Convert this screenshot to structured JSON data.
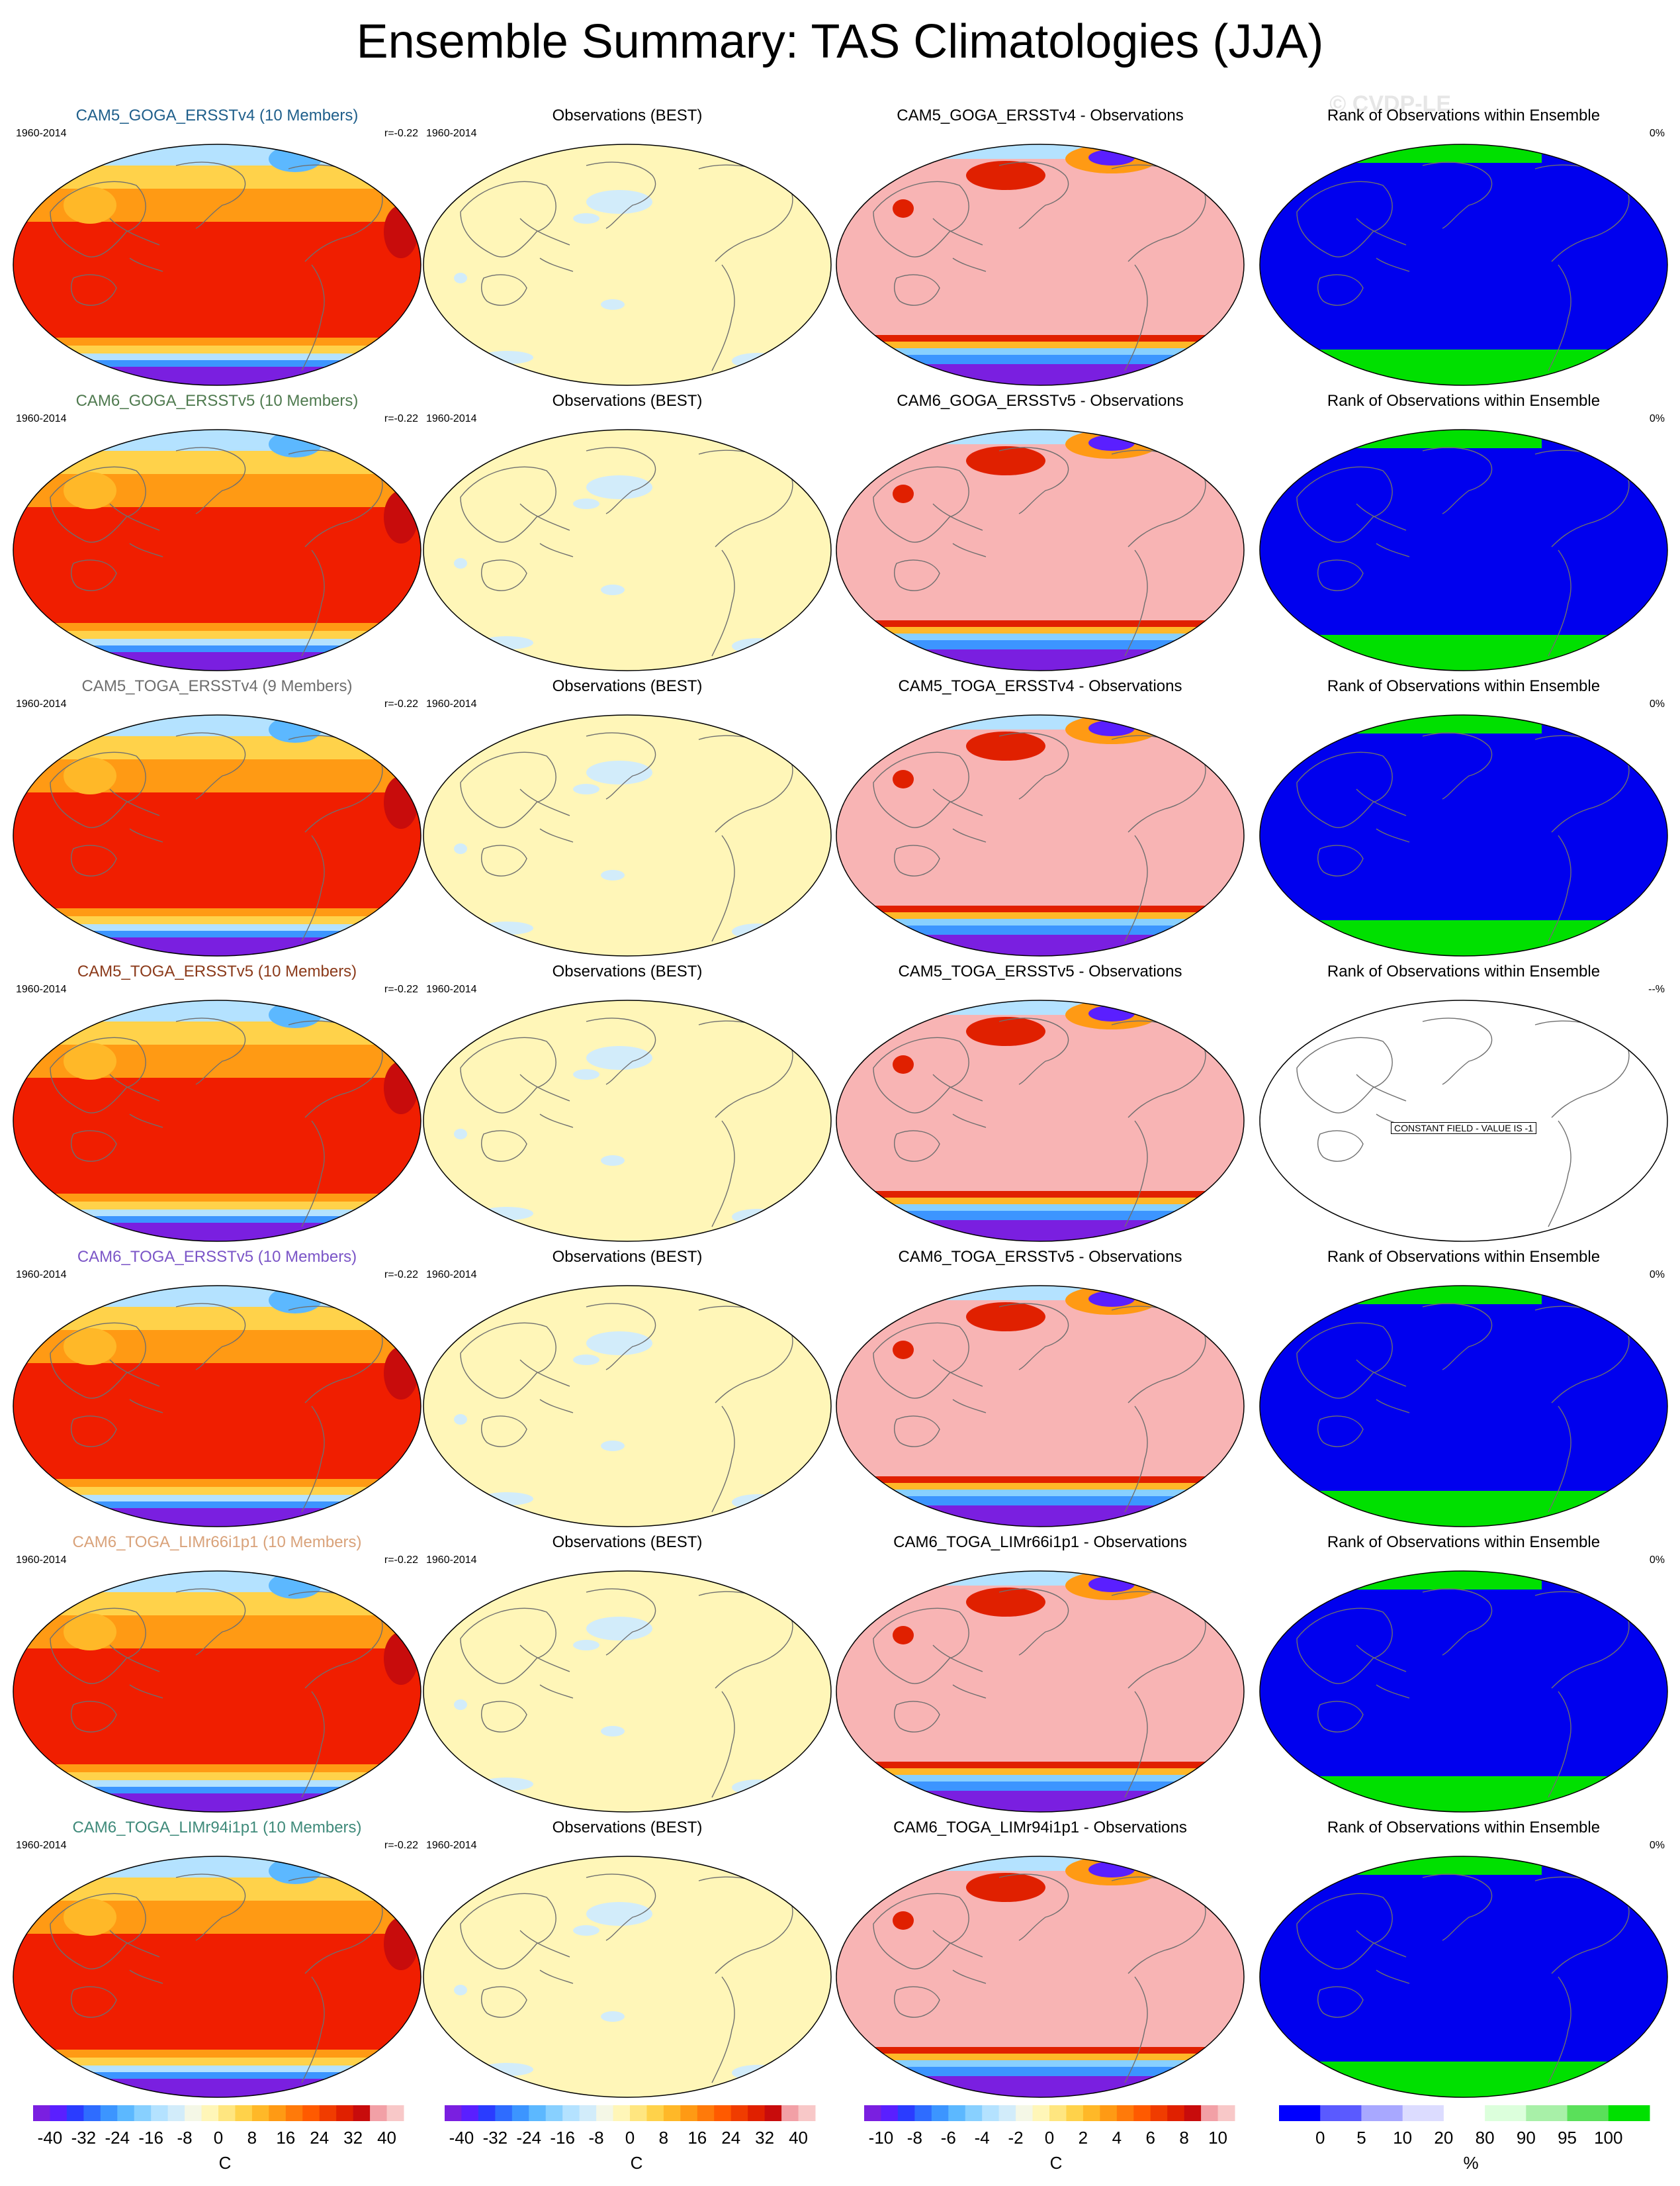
{
  "title": "Ensemble Summary: TAS Climatologies (JJA)",
  "watermark": "© CVDP-LE",
  "rows": [
    {
      "model": {
        "title": "CAM5_GOGA_ERSSTv4 (10 Members)",
        "color": "#1f5f8b",
        "period": "1960-2014",
        "corr": "r=-0.22"
      },
      "obs": {
        "title": "Observations (BEST)",
        "period": "1960-2014"
      },
      "diff": {
        "title": "CAM5_GOGA_ERSSTv4 - Observations"
      },
      "rank": {
        "title": "Rank of Observations within Ensemble",
        "pct": "0%",
        "constant": false
      }
    },
    {
      "model": {
        "title": "CAM6_GOGA_ERSSTv5 (10 Members)",
        "color": "#4f7a4f",
        "period": "1960-2014",
        "corr": "r=-0.22"
      },
      "obs": {
        "title": "Observations (BEST)",
        "period": "1960-2014"
      },
      "diff": {
        "title": "CAM6_GOGA_ERSSTv5 - Observations"
      },
      "rank": {
        "title": "Rank of Observations within Ensemble",
        "pct": "0%",
        "constant": false
      }
    },
    {
      "model": {
        "title": "CAM5_TOGA_ERSSTv4 (9 Members)",
        "color": "#6e6e6e",
        "period": "1960-2014",
        "corr": "r=-0.22"
      },
      "obs": {
        "title": "Observations (BEST)",
        "period": "1960-2014"
      },
      "diff": {
        "title": "CAM5_TOGA_ERSSTv4 - Observations"
      },
      "rank": {
        "title": "Rank of Observations within Ensemble",
        "pct": "0%",
        "constant": false
      }
    },
    {
      "model": {
        "title": "CAM5_TOGA_ERSSTv5 (10 Members)",
        "color": "#8b3a1a",
        "period": "1960-2014",
        "corr": "r=-0.22"
      },
      "obs": {
        "title": "Observations (BEST)",
        "period": "1960-2014"
      },
      "diff": {
        "title": "CAM5_TOGA_ERSSTv5 - Observations"
      },
      "rank": {
        "title": "Rank of Observations within Ensemble",
        "pct": "--%",
        "constant": true,
        "note": "CONSTANT FIELD - VALUE IS -1"
      }
    },
    {
      "model": {
        "title": "CAM6_TOGA_ERSSTv5 (10 Members)",
        "color": "#7b55c7",
        "period": "1960-2014",
        "corr": "r=-0.22"
      },
      "obs": {
        "title": "Observations (BEST)",
        "period": "1960-2014"
      },
      "diff": {
        "title": "CAM6_TOGA_ERSSTv5 - Observations"
      },
      "rank": {
        "title": "Rank of Observations within Ensemble",
        "pct": "0%",
        "constant": false
      }
    },
    {
      "model": {
        "title": "CAM6_TOGA_LIMr66i1p1 (10 Members)",
        "color": "#d9a27a",
        "period": "1960-2014",
        "corr": "r=-0.22"
      },
      "obs": {
        "title": "Observations (BEST)",
        "period": "1960-2014"
      },
      "diff": {
        "title": "CAM6_TOGA_LIMr66i1p1 - Observations"
      },
      "rank": {
        "title": "Rank of Observations within Ensemble",
        "pct": "0%",
        "constant": false
      }
    },
    {
      "model": {
        "title": "CAM6_TOGA_LIMr94i1p1 (10 Members)",
        "color": "#3f8a7a",
        "period": "1960-2014",
        "corr": "r=-0.22"
      },
      "obs": {
        "title": "Observations (BEST)",
        "period": "1960-2014"
      },
      "diff": {
        "title": "CAM6_TOGA_LIMr94i1p1 - Observations"
      },
      "rank": {
        "title": "Rank of Observations within Ensemble",
        "pct": "0%",
        "constant": false
      }
    }
  ],
  "colorbars": [
    {
      "unit": "C",
      "labels": [
        "-40",
        "-32",
        "-24",
        "-16",
        "-8",
        "0",
        "8",
        "16",
        "24",
        "32",
        "40"
      ],
      "colors": [
        "#7a1fe0",
        "#5a1fff",
        "#2a3cff",
        "#2e6cff",
        "#3c95ff",
        "#5cb8ff",
        "#88d0ff",
        "#b4e2ff",
        "#d2ecfa",
        "#f4f7e6",
        "#fff6b8",
        "#ffe680",
        "#ffd24a",
        "#ffb828",
        "#ff9a14",
        "#ff7a0a",
        "#ff5a00",
        "#f03c00",
        "#e02000",
        "#c80c0c",
        "#f2a0a6",
        "#f8c8c8"
      ]
    },
    {
      "unit": "C",
      "labels": [
        "-40",
        "-32",
        "-24",
        "-16",
        "-8",
        "0",
        "8",
        "16",
        "24",
        "32",
        "40"
      ],
      "colors": [
        "#7a1fe0",
        "#5a1fff",
        "#2a3cff",
        "#2e6cff",
        "#3c95ff",
        "#5cb8ff",
        "#88d0ff",
        "#b4e2ff",
        "#d2ecfa",
        "#f4f7e6",
        "#fff6b8",
        "#ffe680",
        "#ffd24a",
        "#ffb828",
        "#ff9a14",
        "#ff7a0a",
        "#ff5a00",
        "#f03c00",
        "#e02000",
        "#c80c0c",
        "#f2a0a6",
        "#f8c8c8"
      ]
    },
    {
      "unit": "C",
      "labels": [
        "-10",
        "-8",
        "-6",
        "-4",
        "-2",
        "0",
        "2",
        "4",
        "6",
        "8",
        "10"
      ],
      "colors": [
        "#7a1fe0",
        "#5a1fff",
        "#2a3cff",
        "#2e6cff",
        "#3c95ff",
        "#5cb8ff",
        "#88d0ff",
        "#b4e2ff",
        "#d2ecfa",
        "#f4f7e6",
        "#fff6b8",
        "#ffe680",
        "#ffd24a",
        "#ffb828",
        "#ff9a14",
        "#ff7a0a",
        "#ff5a00",
        "#f03c00",
        "#e02000",
        "#c80c0c",
        "#f2a0a6",
        "#f8c8c8"
      ]
    },
    {
      "unit": "%",
      "labels": [
        "0",
        "5",
        "10",
        "20",
        "80",
        "90",
        "95",
        "100"
      ],
      "colors": [
        "#0000ff",
        "#5a5aff",
        "#a8a8ff",
        "#dcdcff",
        "#ffffff",
        "#dcffdc",
        "#a8f0a8",
        "#5ae05a",
        "#00e000"
      ]
    }
  ],
  "map_colors": {
    "model_base": "#f01e00",
    "model_low": "#ff9a14",
    "model_high": "#ffd24a",
    "ice_high": "#b4e2ff",
    "ice_mid": "#3c95ff",
    "ice_low": "#7a1fe0",
    "obs_base": "#fff6b8",
    "obs_patch": "#d2ecfa",
    "diff_base": "#f8b4b4",
    "diff_warm": "#e02000",
    "rank_base": "#0000ee",
    "rank_cap": "#00e000"
  }
}
